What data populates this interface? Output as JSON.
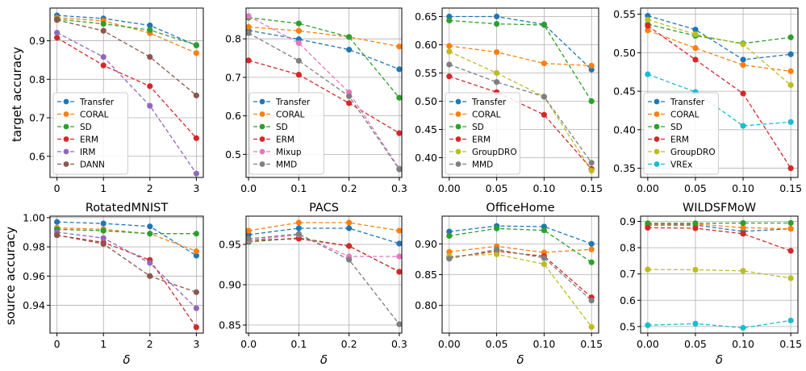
{
  "row_labels": [
    "target accuracy",
    "source accuracy"
  ],
  "xlabel": "δ",
  "colors": {
    "Transfer": "#1f77b4",
    "CORAL": "#ff7f0e",
    "SD": "#2ca02c",
    "ERM": "#d62728",
    "IRM": "#9467bd",
    "DANN": "#8c564b",
    "Mixup": "#e377c2",
    "MMD": "#7f7f7f",
    "GroupDRO": "#bcbd22",
    "VREx": "#17becf"
  },
  "chart_data": [
    {
      "type": "line",
      "title": "",
      "xlabel": "",
      "ylabel": "target accuracy",
      "x": [
        0,
        1,
        2,
        3
      ],
      "xticks": [
        "0",
        "1",
        "2",
        "3"
      ],
      "xlim": [
        -0.15,
        3.15
      ],
      "ylim": [
        0.545,
        0.985
      ],
      "yticks": [
        0.6,
        0.7,
        0.8,
        0.9
      ],
      "ytick_labels": [
        "0.6",
        "0.7",
        "0.8",
        "0.9"
      ],
      "grid": true,
      "legend": "lower-left",
      "series": [
        {
          "name": "Transfer",
          "values": [
            0.966,
            0.958,
            0.94,
            0.888
          ]
        },
        {
          "name": "CORAL",
          "values": [
            0.96,
            0.952,
            0.92,
            0.868
          ]
        },
        {
          "name": "SD",
          "values": [
            0.956,
            0.944,
            0.928,
            0.889
          ]
        },
        {
          "name": "ERM",
          "values": [
            0.908,
            0.836,
            0.782,
            0.647
          ]
        },
        {
          "name": "IRM",
          "values": [
            0.921,
            0.858,
            0.731,
            0.555
          ]
        },
        {
          "name": "DANN",
          "values": [
            0.954,
            0.926,
            0.858,
            0.758
          ]
        }
      ]
    },
    {
      "type": "line",
      "title": "",
      "xlabel": "",
      "ylabel": "",
      "x": [
        0,
        0.1,
        0.2,
        0.3
      ],
      "xticks": [
        "0.0",
        "0.1",
        "0.2",
        "0.3"
      ],
      "xlim": [
        -0.005,
        0.305
      ],
      "ylim": [
        0.44,
        0.88
      ],
      "yticks": [
        0.5,
        0.6,
        0.7,
        0.8
      ],
      "ytick_labels": [
        "0.5",
        "0.6",
        "0.7",
        "0.8"
      ],
      "grid": true,
      "legend": "lower-left",
      "series": [
        {
          "name": "Transfer",
          "values": [
            0.822,
            0.799,
            0.772,
            0.721
          ]
        },
        {
          "name": "CORAL",
          "values": [
            0.831,
            0.821,
            0.805,
            0.78
          ]
        },
        {
          "name": "SD",
          "values": [
            0.855,
            0.84,
            0.805,
            0.647
          ]
        },
        {
          "name": "ERM",
          "values": [
            0.744,
            0.707,
            0.633,
            0.555
          ]
        },
        {
          "name": "Mixup",
          "values": [
            0.859,
            0.789,
            0.661,
            0.463
          ]
        },
        {
          "name": "MMD",
          "values": [
            0.815,
            0.743,
            0.651,
            0.461
          ]
        }
      ]
    },
    {
      "type": "line",
      "title": "",
      "xlabel": "",
      "ylabel": "",
      "x": [
        0,
        0.05,
        0.1,
        0.15
      ],
      "xticks": [
        "0.00",
        "0.05",
        "0.10",
        "0.15"
      ],
      "xlim": [
        -0.0075,
        0.1575
      ],
      "ylim": [
        0.365,
        0.665
      ],
      "yticks": [
        0.4,
        0.45,
        0.5,
        0.55,
        0.6,
        0.65
      ],
      "ytick_labels": [
        "0.40",
        "0.45",
        "0.50",
        "0.55",
        "0.60",
        "0.65"
      ],
      "grid": true,
      "legend": "lower-left",
      "series": [
        {
          "name": "Transfer",
          "values": [
            0.65,
            0.65,
            0.636,
            0.556
          ]
        },
        {
          "name": "CORAL",
          "values": [
            0.598,
            0.587,
            0.567,
            0.563
          ]
        },
        {
          "name": "SD",
          "values": [
            0.643,
            0.637,
            0.635,
            0.5
          ]
        },
        {
          "name": "ERM",
          "values": [
            0.544,
            0.516,
            0.476,
            0.38
          ]
        },
        {
          "name": "GroupDRO",
          "values": [
            0.588,
            0.55,
            0.508,
            0.377
          ]
        },
        {
          "name": "MMD",
          "values": [
            0.565,
            0.534,
            0.508,
            0.391
          ]
        }
      ]
    },
    {
      "type": "line",
      "title": "",
      "xlabel": "",
      "ylabel": "",
      "x": [
        0,
        0.05,
        0.1,
        0.15
      ],
      "xticks": [
        "0.00",
        "0.05",
        "0.10",
        "0.15"
      ],
      "xlim": [
        -0.0075,
        0.1575
      ],
      "ylim": [
        0.338,
        0.558
      ],
      "yticks": [
        0.35,
        0.4,
        0.45,
        0.5,
        0.55
      ],
      "ytick_labels": [
        "0.35",
        "0.40",
        "0.45",
        "0.50",
        "0.55"
      ],
      "grid": true,
      "legend": "lower-left",
      "series": [
        {
          "name": "Transfer",
          "values": [
            0.548,
            0.53,
            0.491,
            0.498
          ]
        },
        {
          "name": "CORAL",
          "values": [
            0.529,
            0.506,
            0.484,
            0.476
          ]
        },
        {
          "name": "SD",
          "values": [
            0.537,
            0.522,
            0.512,
            0.52
          ]
        },
        {
          "name": "ERM",
          "values": [
            0.535,
            0.491,
            0.447,
            0.35
          ]
        },
        {
          "name": "GroupDRO",
          "values": [
            0.543,
            0.524,
            0.511,
            0.458
          ]
        },
        {
          "name": "VREx",
          "values": [
            0.472,
            0.449,
            0.405,
            0.41
          ]
        }
      ]
    },
    {
      "type": "line",
      "title": "RotatedMNIST",
      "xlabel": "δ",
      "ylabel": "source accuracy",
      "x": [
        0,
        1,
        2,
        3
      ],
      "xticks": [
        "0",
        "1",
        "2",
        "3"
      ],
      "xlim": [
        -0.15,
        3.15
      ],
      "ylim": [
        0.921,
        1.001
      ],
      "yticks": [
        0.94,
        0.96,
        0.98,
        1.0
      ],
      "ytick_labels": [
        "0.94",
        "0.96",
        "0.98",
        "1.00"
      ],
      "grid": true,
      "legend": "none",
      "series": [
        {
          "name": "Transfer",
          "values": [
            0.997,
            0.996,
            0.994,
            0.974
          ]
        },
        {
          "name": "CORAL",
          "values": [
            0.993,
            0.992,
            0.989,
            0.977
          ]
        },
        {
          "name": "SD",
          "values": [
            0.992,
            0.991,
            0.989,
            0.989
          ]
        },
        {
          "name": "ERM",
          "values": [
            0.988,
            0.983,
            0.971,
            0.925
          ]
        },
        {
          "name": "IRM",
          "values": [
            0.99,
            0.986,
            0.969,
            0.938
          ]
        },
        {
          "name": "DANN",
          "values": [
            0.988,
            0.982,
            0.96,
            0.949
          ]
        }
      ]
    },
    {
      "type": "line",
      "title": "PACS",
      "xlabel": "δ",
      "ylabel": "",
      "x": [
        0,
        0.1,
        0.2,
        0.3
      ],
      "xticks": [
        "0.0",
        "0.1",
        "0.2",
        "0.3"
      ],
      "xlim": [
        -0.005,
        0.305
      ],
      "ylim": [
        0.84,
        0.985
      ],
      "yticks": [
        0.85,
        0.9,
        0.95
      ],
      "ytick_labels": [
        "0.85",
        "0.90",
        "0.95"
      ],
      "grid": true,
      "legend": "none",
      "series": [
        {
          "name": "Transfer",
          "values": [
            0.962,
            0.97,
            0.97,
            0.951
          ]
        },
        {
          "name": "CORAL",
          "values": [
            0.967,
            0.977,
            0.977,
            0.967
          ]
        },
        {
          "name": "SD",
          "values": [
            0.953,
            0.958,
            0.948,
            0.916
          ]
        },
        {
          "name": "ERM",
          "values": [
            0.955,
            0.957,
            0.948,
            0.916
          ]
        },
        {
          "name": "Mixup",
          "values": [
            0.955,
            0.962,
            0.935,
            0.935
          ]
        },
        {
          "name": "MMD",
          "values": [
            0.957,
            0.963,
            0.931,
            0.851
          ]
        }
      ]
    },
    {
      "type": "line",
      "title": "OfficeHome",
      "xlabel": "δ",
      "ylabel": "",
      "x": [
        0,
        0.05,
        0.1,
        0.15
      ],
      "xticks": [
        "0.00",
        "0.05",
        "0.10",
        "0.15"
      ],
      "xlim": [
        -0.0075,
        0.1575
      ],
      "ylim": [
        0.755,
        0.945
      ],
      "yticks": [
        0.8,
        0.85,
        0.9
      ],
      "ytick_labels": [
        "0.80",
        "0.85",
        "0.90"
      ],
      "grid": true,
      "legend": "none",
      "series": [
        {
          "name": "Transfer",
          "values": [
            0.92,
            0.929,
            0.928,
            0.9
          ]
        },
        {
          "name": "CORAL",
          "values": [
            0.887,
            0.896,
            0.886,
            0.891
          ]
        },
        {
          "name": "SD",
          "values": [
            0.913,
            0.925,
            0.922,
            0.87
          ]
        },
        {
          "name": "ERM",
          "values": [
            0.878,
            0.888,
            0.88,
            0.813
          ]
        },
        {
          "name": "GroupDRO",
          "values": [
            0.88,
            0.883,
            0.867,
            0.765
          ]
        },
        {
          "name": "MMD",
          "values": [
            0.876,
            0.891,
            0.877,
            0.808
          ]
        }
      ]
    },
    {
      "type": "line",
      "title": "WILDSFMoW",
      "xlabel": "δ",
      "ylabel": "",
      "x": [
        0,
        0.05,
        0.1,
        0.15
      ],
      "xticks": [
        "0.00",
        "0.05",
        "0.10",
        "0.15"
      ],
      "xlim": [
        -0.0075,
        0.1575
      ],
      "ylim": [
        0.475,
        0.92
      ],
      "yticks": [
        0.5,
        0.6,
        0.7,
        0.8,
        0.9
      ],
      "ytick_labels": [
        "0.5",
        "0.6",
        "0.7",
        "0.8",
        "0.9"
      ],
      "grid": true,
      "legend": "none",
      "series": [
        {
          "name": "Transfer",
          "values": [
            0.886,
            0.886,
            0.862,
            0.872
          ]
        },
        {
          "name": "CORAL",
          "values": [
            0.889,
            0.89,
            0.876,
            0.872
          ]
        },
        {
          "name": "SD",
          "values": [
            0.893,
            0.893,
            0.894,
            0.894
          ]
        },
        {
          "name": "ERM",
          "values": [
            0.876,
            0.874,
            0.853,
            0.788
          ]
        },
        {
          "name": "GroupDRO",
          "values": [
            0.717,
            0.716,
            0.712,
            0.684
          ]
        },
        {
          "name": "VREx",
          "values": [
            0.505,
            0.511,
            0.495,
            0.523
          ]
        }
      ]
    }
  ]
}
